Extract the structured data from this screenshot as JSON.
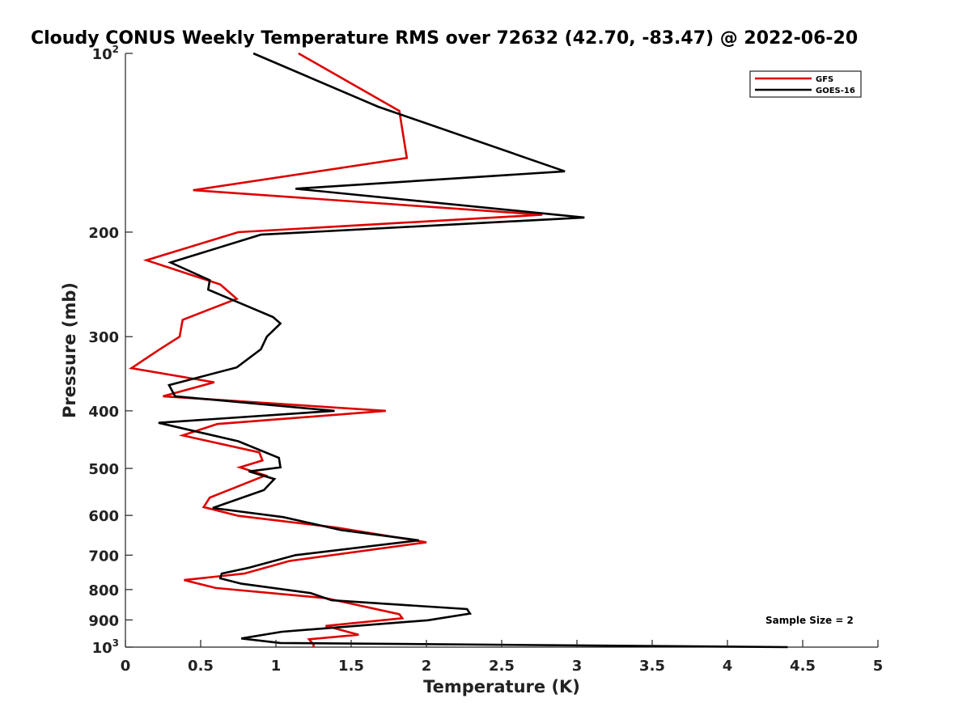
{
  "chart_data": {
    "type": "line",
    "title": "Cloudy CONUS Weekly Temperature RMS over 72632 (42.70, -83.47) @ 2022-06-20",
    "xlabel": "Temperature (K)",
    "ylabel": "Pressure (mb)",
    "xlim": [
      0,
      5
    ],
    "ylim": [
      100,
      1000
    ],
    "y_scale": "log",
    "y_reversed": true,
    "x_ticks": [
      0,
      0.5,
      1,
      1.5,
      2,
      2.5,
      3,
      3.5,
      4,
      4.5,
      5
    ],
    "x_tick_labels": [
      "0",
      "0.5",
      "1",
      "1.5",
      "2",
      "2.5",
      "3",
      "3.5",
      "4",
      "4.5",
      "5"
    ],
    "y_ticks": [
      {
        "value": 100,
        "base": "10",
        "exp": "2"
      },
      {
        "value": 200,
        "label": "200"
      },
      {
        "value": 300,
        "label": "300"
      },
      {
        "value": 400,
        "label": "400"
      },
      {
        "value": 500,
        "label": "500"
      },
      {
        "value": 600,
        "label": "600"
      },
      {
        "value": 700,
        "label": "700"
      },
      {
        "value": 800,
        "label": "800"
      },
      {
        "value": 900,
        "label": "900"
      },
      {
        "value": 1000,
        "base": "10",
        "exp": "3"
      }
    ],
    "grid": false,
    "legend_position": "top-right",
    "annotation": "Sample Size = 2",
    "series": [
      {
        "name": "GFS",
        "color": "#dd0000",
        "points": [
          [
            1.15,
            100
          ],
          [
            1.82,
            125
          ],
          [
            1.87,
            150
          ],
          [
            0.45,
            170
          ],
          [
            2.77,
            187
          ],
          [
            0.75,
            200
          ],
          [
            0.14,
            223
          ],
          [
            0.63,
            245
          ],
          [
            0.74,
            259
          ],
          [
            0.38,
            281
          ],
          [
            0.36,
            300
          ],
          [
            0.22,
            316
          ],
          [
            0.04,
            339
          ],
          [
            0.59,
            358
          ],
          [
            0.25,
            378
          ],
          [
            1.73,
            400
          ],
          [
            0.61,
            421
          ],
          [
            0.38,
            440
          ],
          [
            0.89,
            470
          ],
          [
            0.91,
            485
          ],
          [
            0.76,
            498
          ],
          [
            0.93,
            514
          ],
          [
            0.56,
            560
          ],
          [
            0.52,
            581
          ],
          [
            0.75,
            601
          ],
          [
            1.4,
            629
          ],
          [
            2.0,
            666
          ],
          [
            1.09,
            716
          ],
          [
            0.79,
            752
          ],
          [
            0.39,
            771
          ],
          [
            0.6,
            795
          ],
          [
            1.33,
            827
          ],
          [
            1.82,
            880
          ],
          [
            1.84,
            894
          ],
          [
            1.33,
            921
          ],
          [
            1.55,
            953
          ],
          [
            1.22,
            970
          ],
          [
            1.25,
            990
          ],
          [
            1.25,
            1000
          ]
        ]
      },
      {
        "name": "GOES-16",
        "color": "#000000",
        "points": [
          [
            0.85,
            100
          ],
          [
            1.68,
            123
          ],
          [
            2.92,
            158
          ],
          [
            1.13,
            169
          ],
          [
            3.05,
            189
          ],
          [
            0.9,
            202
          ],
          [
            0.3,
            225
          ],
          [
            0.56,
            241
          ],
          [
            0.55,
            250
          ],
          [
            0.98,
            278
          ],
          [
            1.03,
            285
          ],
          [
            0.94,
            300
          ],
          [
            0.9,
            315
          ],
          [
            0.74,
            338
          ],
          [
            0.29,
            362
          ],
          [
            0.33,
            378
          ],
          [
            1.39,
            400
          ],
          [
            0.22,
            419
          ],
          [
            0.75,
            450
          ],
          [
            1.02,
            480
          ],
          [
            1.03,
            498
          ],
          [
            0.82,
            506
          ],
          [
            0.99,
            521
          ],
          [
            0.92,
            544
          ],
          [
            0.58,
            583
          ],
          [
            1.05,
            604
          ],
          [
            1.43,
            635
          ],
          [
            1.95,
            661
          ],
          [
            1.13,
            700
          ],
          [
            0.82,
            735
          ],
          [
            0.64,
            752
          ],
          [
            0.63,
            766
          ],
          [
            0.77,
            782
          ],
          [
            1.23,
            811
          ],
          [
            1.37,
            834
          ],
          [
            2.27,
            863
          ],
          [
            2.29,
            878
          ],
          [
            2.01,
            901
          ],
          [
            1.04,
            942
          ],
          [
            0.77,
            967
          ],
          [
            1.03,
            984
          ],
          [
            4.4,
            1000
          ]
        ]
      }
    ]
  }
}
